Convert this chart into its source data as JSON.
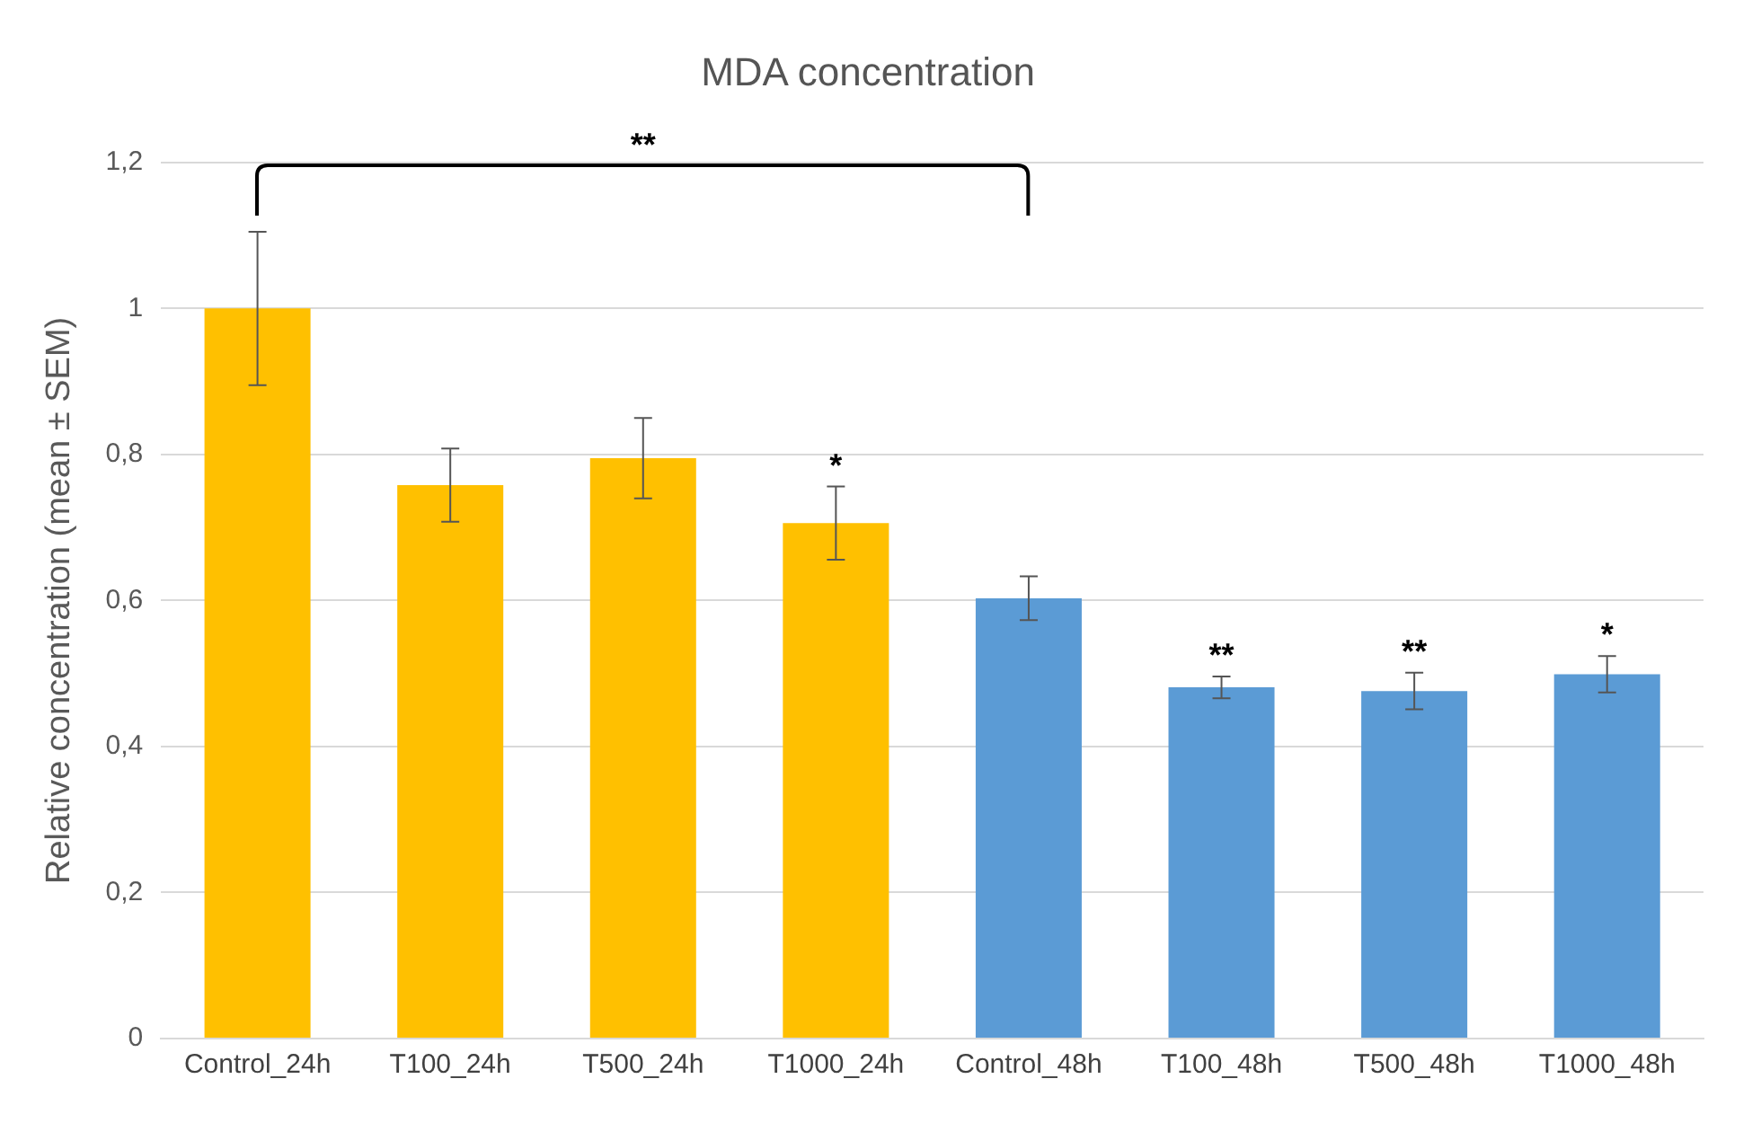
{
  "chart_data": {
    "type": "bar",
    "title": "MDA concentration",
    "ylabel": "Relative concentration (mean ± SEM)",
    "categories": [
      "Control_24h",
      "T100_24h",
      "T500_24h",
      "T1000_24h",
      "Control_48h",
      "T100_48h",
      "T500_48h",
      "T1000_48h"
    ],
    "values": [
      1.0,
      0.758,
      0.795,
      0.706,
      0.603,
      0.481,
      0.476,
      0.499
    ],
    "errors": [
      0.105,
      0.05,
      0.055,
      0.05,
      0.03,
      0.015,
      0.025,
      0.025
    ],
    "colors": [
      "#ffc000",
      "#ffc000",
      "#ffc000",
      "#ffc000",
      "#5b9bd5",
      "#5b9bd5",
      "#5b9bd5",
      "#5b9bd5"
    ],
    "ylim": [
      0,
      1.2
    ],
    "yticks": [
      0,
      {
        "value": 0.2,
        "label": "0,2"
      },
      {
        "value": 0.4,
        "label": "0,4"
      },
      {
        "value": 0.6,
        "label": "0,6"
      },
      {
        "value": 0.8,
        "label": "0,8"
      },
      1,
      {
        "value": 1.2,
        "label": "1,2"
      }
    ],
    "grid": "y",
    "annotations": [
      "**",
      {
        "text": "*",
        "x": "T1000_24h",
        "y": 0.756
      },
      {
        "text": "**",
        "x": "T100_48h",
        "y": 0.496
      },
      {
        "text": "**",
        "x": "T500_48h",
        "y": 0.501
      },
      {
        "text": "*",
        "x": "T1000_48h",
        "y": 0.524
      }
    ]
  }
}
